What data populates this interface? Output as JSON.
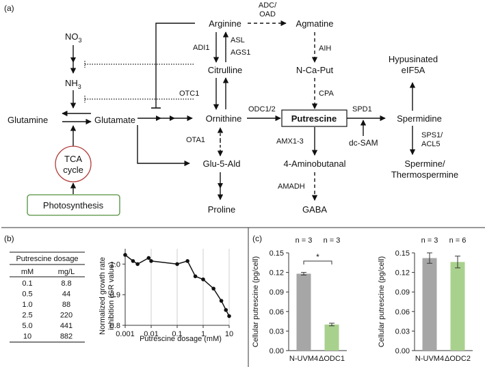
{
  "panel_a": {
    "label": "(a)",
    "nodes": {
      "no3": "NO",
      "no3_sub": "3",
      "nh3": "NH",
      "nh3_sub": "3",
      "glutamine": "Glutamine",
      "glutamate": "Glutamate",
      "tca1": "TCA",
      "tca2": "cycle",
      "photosynthesis": "Photosynthesis",
      "arginine": "Arginine",
      "citrulline": "Citrulline",
      "ornithine": "Ornithine",
      "glu5ald": "Glu-5-Ald",
      "proline": "Proline",
      "agmatine": "Agmatine",
      "ncaput": "N-Ca-Put",
      "putrescine": "Putrescine",
      "aminobutanal": "4-Aminobutanal",
      "gaba": "GABA",
      "hypusinated1": "Hypusinated",
      "hypusinated2": "eIF5A",
      "spermidine": "Spermidine",
      "spermine1": "Spermine/",
      "spermine2": "Thermospermine",
      "dcsam": "dc-SAM"
    },
    "enzymes": {
      "adc_oad1": "ADC/",
      "adc_oad2": "OAD",
      "asl": "ASL",
      "ags1": "AGS1",
      "adi1": "ADI1",
      "aih": "AIH",
      "cpa": "CPA",
      "otc1": "OTC1",
      "odc12": "ODC1/2",
      "spd1": "SPD1",
      "ota1": "OTA1",
      "amx13": "AMX1-3",
      "amadh": "AMADH",
      "sps1": "SPS1/",
      "acl5": "ACL5"
    }
  },
  "panel_b": {
    "label": "(b)",
    "table": {
      "title": "Putrescine dosage",
      "headers": [
        "mM",
        "mg/L"
      ],
      "rows": [
        [
          "0.1",
          "8.8"
        ],
        [
          "0.5",
          "44"
        ],
        [
          "1.0",
          "88"
        ],
        [
          "2.5",
          "220"
        ],
        [
          "5.0",
          "441"
        ],
        [
          "10",
          "882"
        ]
      ]
    },
    "chart_data": {
      "type": "line",
      "xlabel": "Putrescine dosage (mM)",
      "ylabel_line1": "Normalized growth rate",
      "ylabel_line2": "inhibition (GR value)",
      "x_scale": "log",
      "xlim": [
        0.001,
        10
      ],
      "ylim": [
        0.8,
        1.05
      ],
      "xticks": [
        "0.001",
        "0.01",
        "0.1",
        "1",
        "10"
      ],
      "yticks": [
        "0.8",
        "0.9",
        "1.0"
      ],
      "grid": "x-major",
      "x": [
        0.001,
        0.002,
        0.003,
        0.008,
        0.01,
        0.1,
        0.25,
        0.5,
        1,
        2.5,
        5,
        7.5,
        10
      ],
      "y": [
        1.03,
        1.01,
        1.0,
        1.02,
        1.01,
        1.0,
        1.01,
        0.96,
        0.95,
        0.92,
        0.88,
        0.85,
        0.83
      ]
    }
  },
  "panel_c": {
    "label": "(c)",
    "chart_data": [
      {
        "type": "bar",
        "ylabel": "Cellular putrescine (pg/cell)",
        "ylim": [
          0,
          0.15
        ],
        "yticks": [
          "0.00",
          "0.03",
          "0.06",
          "0.09",
          "0.12",
          "0.15"
        ],
        "categories": [
          "N-UVM4",
          "ΔODC1"
        ],
        "values": [
          0.118,
          0.04
        ],
        "errors": [
          0.002,
          0.002
        ],
        "n_labels": [
          "n = 3",
          "n = 3"
        ],
        "colors": [
          "#a6a6a6",
          "#a9d18e"
        ],
        "significance": "*"
      },
      {
        "type": "bar",
        "ylabel": "Cellular putrescine (pg/cell)",
        "ylim": [
          0,
          0.15
        ],
        "yticks": [
          "0.00",
          "0.03",
          "0.06",
          "0.09",
          "0.12",
          "0.15"
        ],
        "categories": [
          "N-UVM4",
          "ΔODC2"
        ],
        "values": [
          0.142,
          0.136
        ],
        "errors": [
          0.008,
          0.009
        ],
        "n_labels": [
          "n = 3",
          "n = 6"
        ],
        "colors": [
          "#a6a6a6",
          "#a9d18e"
        ]
      }
    ]
  }
}
